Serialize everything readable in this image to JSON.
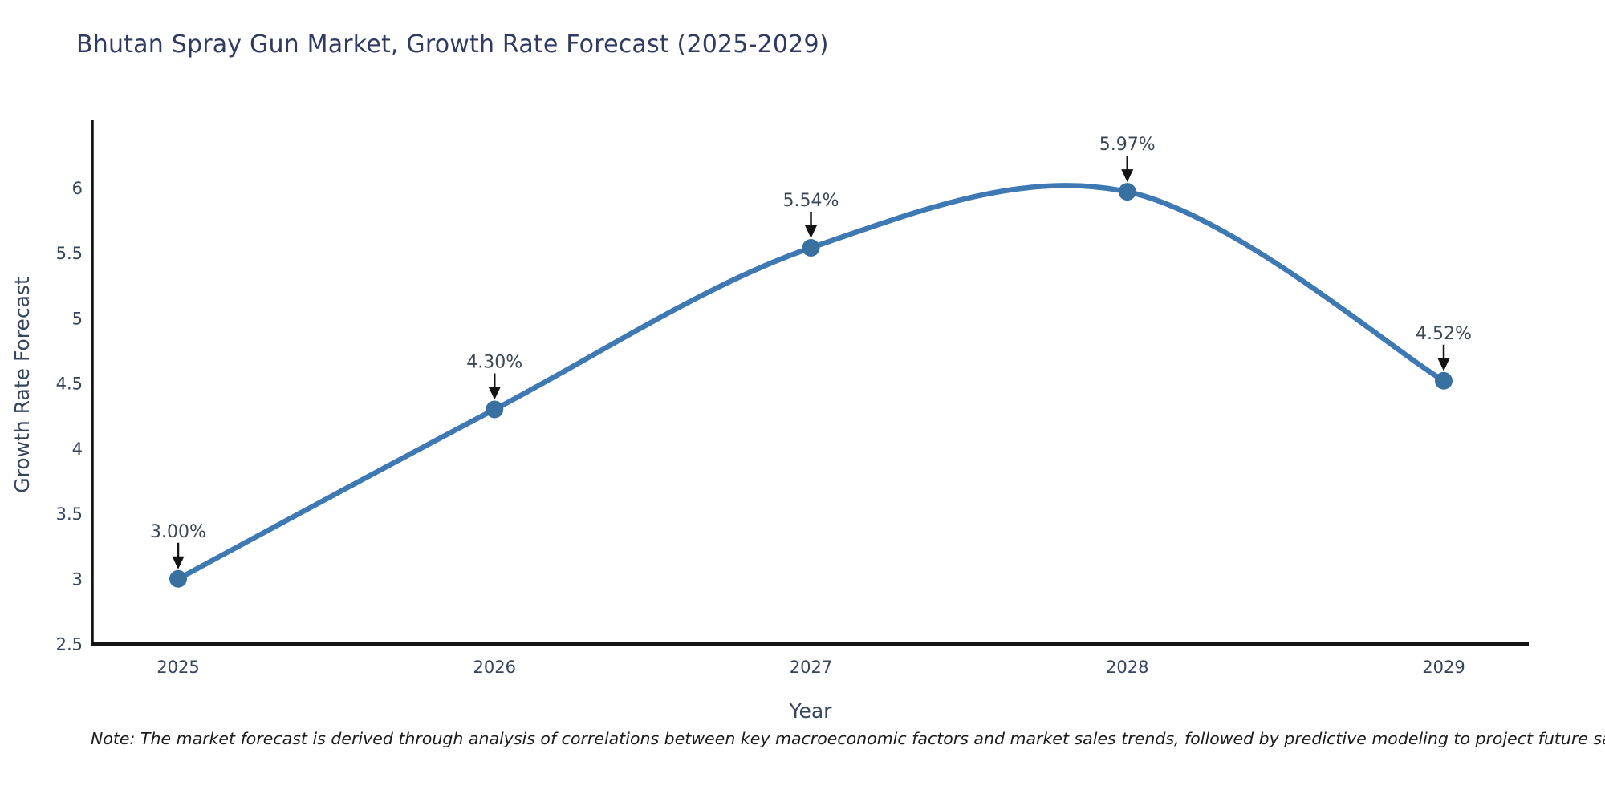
{
  "title": "Bhutan Spray Gun Market, Growth Rate Forecast (2025-2029)",
  "note": "Note: The market forecast is derived through analysis of correlations between key macroeconomic factors and market sales trends, followed by predictive modeling to project future sales",
  "chart_data": {
    "type": "line",
    "title": "Bhutan Spray Gun Market, Growth Rate Forecast (2025-2029)",
    "xlabel": "Year",
    "ylabel": "Growth Rate Forecast",
    "categories": [
      "2025",
      "2026",
      "2027",
      "2028",
      "2029"
    ],
    "values": [
      3.0,
      4.3,
      5.54,
      5.97,
      4.52
    ],
    "point_labels": [
      "3.00%",
      "4.30%",
      "5.54%",
      "5.97%",
      "4.52%"
    ],
    "ytick_values": [
      2.5,
      3,
      3.5,
      4,
      4.5,
      5,
      5.5,
      6
    ],
    "ytick_labels": [
      "2.5",
      "3",
      "3.5",
      "4",
      "4.5",
      "5",
      "5.5",
      "6"
    ],
    "ylim": [
      2.5,
      6.5
    ],
    "line_shape": "spline",
    "grid": false,
    "legend": "none",
    "colors": {
      "line": "#3e79b4",
      "marker": "#38709f",
      "axis": "#141414",
      "arrow": "#141414",
      "tick_text": "#36455c",
      "annotation_text": "#3c4754",
      "title_text": "#313a60",
      "background": "#ffffff"
    }
  }
}
